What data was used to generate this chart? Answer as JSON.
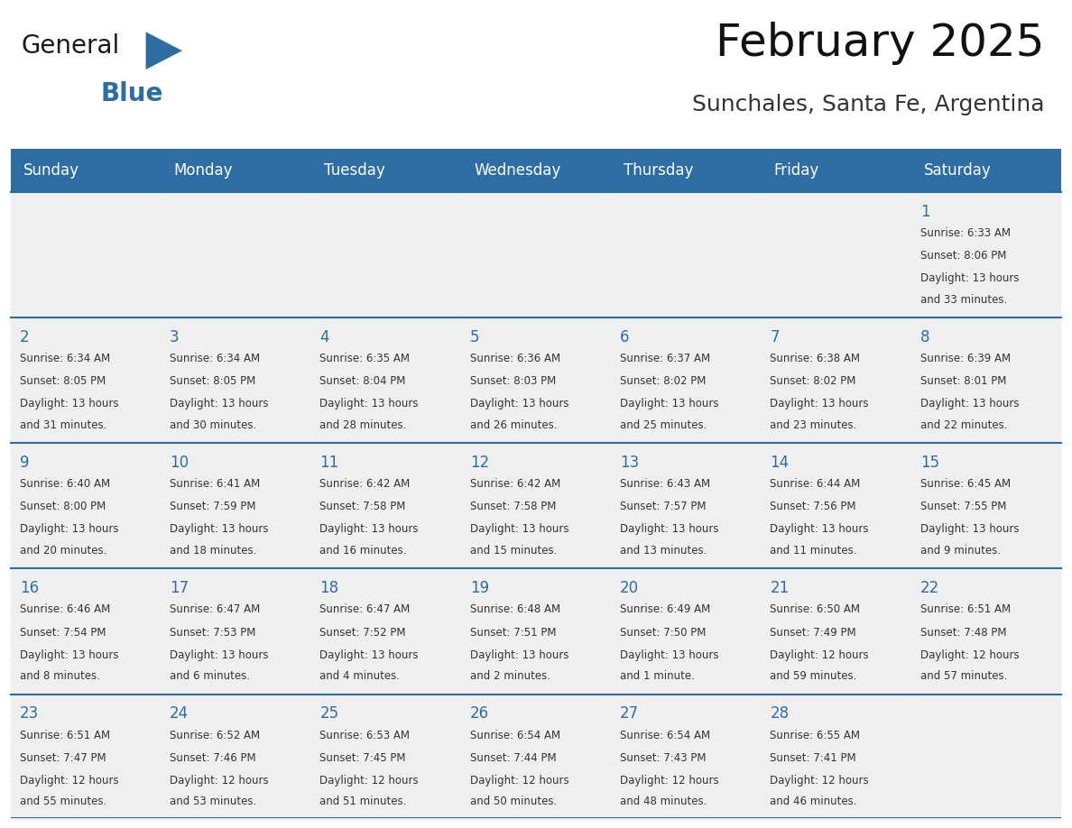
{
  "title": "February 2025",
  "subtitle": "Sunchales, Santa Fe, Argentina",
  "header_bg_color": "#2E6DA4",
  "header_text_color": "#FFFFFF",
  "day_number_color": "#2E6DA4",
  "text_color": "#333333",
  "line_color": "#2E6DA4",
  "cell_bg_color": "#EFEFEF",
  "days_of_week": [
    "Sunday",
    "Monday",
    "Tuesday",
    "Wednesday",
    "Thursday",
    "Friday",
    "Saturday"
  ],
  "calendar_data": [
    [
      null,
      null,
      null,
      null,
      null,
      null,
      1
    ],
    [
      2,
      3,
      4,
      5,
      6,
      7,
      8
    ],
    [
      9,
      10,
      11,
      12,
      13,
      14,
      15
    ],
    [
      16,
      17,
      18,
      19,
      20,
      21,
      22
    ],
    [
      23,
      24,
      25,
      26,
      27,
      28,
      null
    ]
  ],
  "cell_info": {
    "1": {
      "sunrise": "6:33 AM",
      "sunset": "8:06 PM",
      "daylight_hours": 13,
      "daylight_minutes": 33
    },
    "2": {
      "sunrise": "6:34 AM",
      "sunset": "8:05 PM",
      "daylight_hours": 13,
      "daylight_minutes": 31
    },
    "3": {
      "sunrise": "6:34 AM",
      "sunset": "8:05 PM",
      "daylight_hours": 13,
      "daylight_minutes": 30
    },
    "4": {
      "sunrise": "6:35 AM",
      "sunset": "8:04 PM",
      "daylight_hours": 13,
      "daylight_minutes": 28
    },
    "5": {
      "sunrise": "6:36 AM",
      "sunset": "8:03 PM",
      "daylight_hours": 13,
      "daylight_minutes": 26
    },
    "6": {
      "sunrise": "6:37 AM",
      "sunset": "8:02 PM",
      "daylight_hours": 13,
      "daylight_minutes": 25
    },
    "7": {
      "sunrise": "6:38 AM",
      "sunset": "8:02 PM",
      "daylight_hours": 13,
      "daylight_minutes": 23
    },
    "8": {
      "sunrise": "6:39 AM",
      "sunset": "8:01 PM",
      "daylight_hours": 13,
      "daylight_minutes": 22
    },
    "9": {
      "sunrise": "6:40 AM",
      "sunset": "8:00 PM",
      "daylight_hours": 13,
      "daylight_minutes": 20
    },
    "10": {
      "sunrise": "6:41 AM",
      "sunset": "7:59 PM",
      "daylight_hours": 13,
      "daylight_minutes": 18
    },
    "11": {
      "sunrise": "6:42 AM",
      "sunset": "7:58 PM",
      "daylight_hours": 13,
      "daylight_minutes": 16
    },
    "12": {
      "sunrise": "6:42 AM",
      "sunset": "7:58 PM",
      "daylight_hours": 13,
      "daylight_minutes": 15
    },
    "13": {
      "sunrise": "6:43 AM",
      "sunset": "7:57 PM",
      "daylight_hours": 13,
      "daylight_minutes": 13
    },
    "14": {
      "sunrise": "6:44 AM",
      "sunset": "7:56 PM",
      "daylight_hours": 13,
      "daylight_minutes": 11
    },
    "15": {
      "sunrise": "6:45 AM",
      "sunset": "7:55 PM",
      "daylight_hours": 13,
      "daylight_minutes": 9
    },
    "16": {
      "sunrise": "6:46 AM",
      "sunset": "7:54 PM",
      "daylight_hours": 13,
      "daylight_minutes": 8
    },
    "17": {
      "sunrise": "6:47 AM",
      "sunset": "7:53 PM",
      "daylight_hours": 13,
      "daylight_minutes": 6
    },
    "18": {
      "sunrise": "6:47 AM",
      "sunset": "7:52 PM",
      "daylight_hours": 13,
      "daylight_minutes": 4
    },
    "19": {
      "sunrise": "6:48 AM",
      "sunset": "7:51 PM",
      "daylight_hours": 13,
      "daylight_minutes": 2
    },
    "20": {
      "sunrise": "6:49 AM",
      "sunset": "7:50 PM",
      "daylight_hours": 13,
      "daylight_minutes": 1
    },
    "21": {
      "sunrise": "6:50 AM",
      "sunset": "7:49 PM",
      "daylight_hours": 12,
      "daylight_minutes": 59
    },
    "22": {
      "sunrise": "6:51 AM",
      "sunset": "7:48 PM",
      "daylight_hours": 12,
      "daylight_minutes": 57
    },
    "23": {
      "sunrise": "6:51 AM",
      "sunset": "7:47 PM",
      "daylight_hours": 12,
      "daylight_minutes": 55
    },
    "24": {
      "sunrise": "6:52 AM",
      "sunset": "7:46 PM",
      "daylight_hours": 12,
      "daylight_minutes": 53
    },
    "25": {
      "sunrise": "6:53 AM",
      "sunset": "7:45 PM",
      "daylight_hours": 12,
      "daylight_minutes": 51
    },
    "26": {
      "sunrise": "6:54 AM",
      "sunset": "7:44 PM",
      "daylight_hours": 12,
      "daylight_minutes": 50
    },
    "27": {
      "sunrise": "6:54 AM",
      "sunset": "7:43 PM",
      "daylight_hours": 12,
      "daylight_minutes": 48
    },
    "28": {
      "sunrise": "6:55 AM",
      "sunset": "7:41 PM",
      "daylight_hours": 12,
      "daylight_minutes": 46
    }
  },
  "logo_general_color": "#1a1a1a",
  "logo_blue_color": "#2E6DA4",
  "title_fontsize": 36,
  "subtitle_fontsize": 18,
  "header_fontsize": 12,
  "day_num_fontsize": 12,
  "cell_text_fontsize": 8.5,
  "figsize": [
    11.88,
    9.18
  ],
  "dpi": 100
}
